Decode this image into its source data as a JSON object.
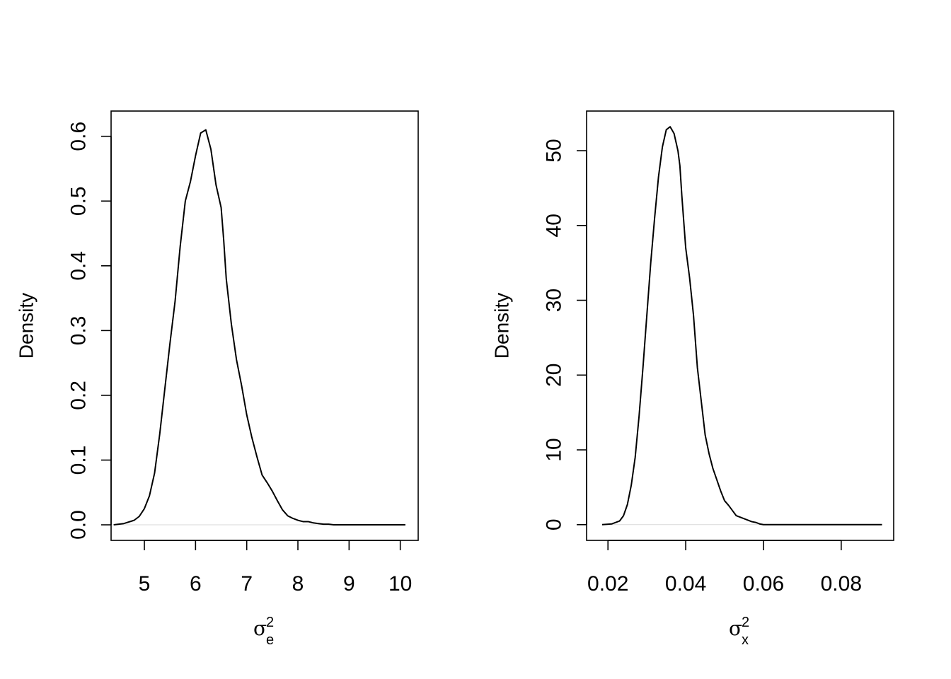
{
  "chart_data": [
    {
      "type": "line",
      "ylabel": "Density",
      "xlabel_symbol": "σ",
      "xlabel_superscript": "2",
      "xlabel_subscript": "e",
      "xlim": [
        4.35,
        10.35
      ],
      "ylim": [
        -0.024,
        0.639
      ],
      "x_ticks": [
        5,
        6,
        7,
        8,
        9,
        10
      ],
      "x_tick_labels": [
        "5",
        "6",
        "7",
        "8",
        "9",
        "10"
      ],
      "y_ticks": [
        0.0,
        0.1,
        0.2,
        0.3,
        0.4,
        0.5,
        0.6
      ],
      "y_tick_labels": [
        "0.0",
        "0.1",
        "0.2",
        "0.3",
        "0.4",
        "0.5",
        "0.6"
      ],
      "series": [
        {
          "x": [
            4.4,
            4.6,
            4.8,
            4.9,
            5.0,
            5.1,
            5.2,
            5.3,
            5.4,
            5.5,
            5.6,
            5.7,
            5.8,
            5.9,
            6.0,
            6.1,
            6.2,
            6.3,
            6.4,
            6.5,
            6.55,
            6.6,
            6.7,
            6.8,
            6.9,
            7.0,
            7.1,
            7.2,
            7.3,
            7.4,
            7.5,
            7.6,
            7.7,
            7.8,
            7.9,
            8.0,
            8.1,
            8.2,
            8.3,
            8.4,
            8.5,
            8.6,
            8.7,
            8.8,
            8.9,
            9.0,
            9.2,
            9.4,
            9.6,
            9.8,
            10.1
          ],
          "y": [
            0.0,
            0.002,
            0.007,
            0.013,
            0.025,
            0.045,
            0.08,
            0.14,
            0.21,
            0.28,
            0.345,
            0.43,
            0.5,
            0.53,
            0.57,
            0.605,
            0.61,
            0.58,
            0.525,
            0.49,
            0.44,
            0.38,
            0.31,
            0.255,
            0.215,
            0.17,
            0.135,
            0.105,
            0.077,
            0.065,
            0.052,
            0.037,
            0.023,
            0.014,
            0.01,
            0.007,
            0.005,
            0.005,
            0.003,
            0.002,
            0.001,
            0.001,
            0.0,
            0.0,
            0.0,
            0.0,
            0.0,
            0.0,
            0.0,
            0.0,
            0.0
          ]
        }
      ]
    },
    {
      "type": "line",
      "ylabel": "Density",
      "xlabel_symbol": "σ",
      "xlabel_superscript": "2",
      "xlabel_subscript": "x",
      "xlim": [
        0.0145,
        0.0935
      ],
      "ylim": [
        -2.1,
        55.3
      ],
      "x_ticks": [
        0.02,
        0.04,
        0.06,
        0.08
      ],
      "x_tick_labels": [
        "0.02",
        "0.04",
        "0.06",
        "0.08"
      ],
      "y_ticks": [
        0,
        10,
        20,
        30,
        40,
        50
      ],
      "y_tick_labels": [
        "0",
        "10",
        "20",
        "30",
        "40",
        "50"
      ],
      "series": [
        {
          "x": [
            0.0185,
            0.021,
            0.023,
            0.024,
            0.025,
            0.026,
            0.027,
            0.028,
            0.029,
            0.03,
            0.031,
            0.032,
            0.033,
            0.034,
            0.035,
            0.036,
            0.037,
            0.038,
            0.0385,
            0.039,
            0.04,
            0.041,
            0.042,
            0.043,
            0.044,
            0.045,
            0.046,
            0.047,
            0.048,
            0.049,
            0.05,
            0.051,
            0.052,
            0.053,
            0.054,
            0.055,
            0.056,
            0.057,
            0.058,
            0.059,
            0.06,
            0.061,
            0.062,
            0.063,
            0.064,
            0.065,
            0.066,
            0.068,
            0.07,
            0.072,
            0.074,
            0.076,
            0.078,
            0.08,
            0.082,
            0.084,
            0.086,
            0.088,
            0.0905
          ],
          "y": [
            0.0,
            0.1,
            0.5,
            1.2,
            2.7,
            5.3,
            9.0,
            14.5,
            21.0,
            28.0,
            35.0,
            41.0,
            46.5,
            50.5,
            52.8,
            53.2,
            52.3,
            50.0,
            48.0,
            44.0,
            37.0,
            33.0,
            28.0,
            21.0,
            16.5,
            12.0,
            9.5,
            7.5,
            6.0,
            4.5,
            3.2,
            2.6,
            1.9,
            1.2,
            1.0,
            0.8,
            0.6,
            0.4,
            0.3,
            0.1,
            0.0,
            0.0,
            0.0,
            0.0,
            0.0,
            0.0,
            0.0,
            0.0,
            0.0,
            0.0,
            0.0,
            0.0,
            0.0,
            0.0,
            0.0,
            0.0,
            0.0,
            0.0,
            0.0
          ]
        }
      ]
    }
  ]
}
